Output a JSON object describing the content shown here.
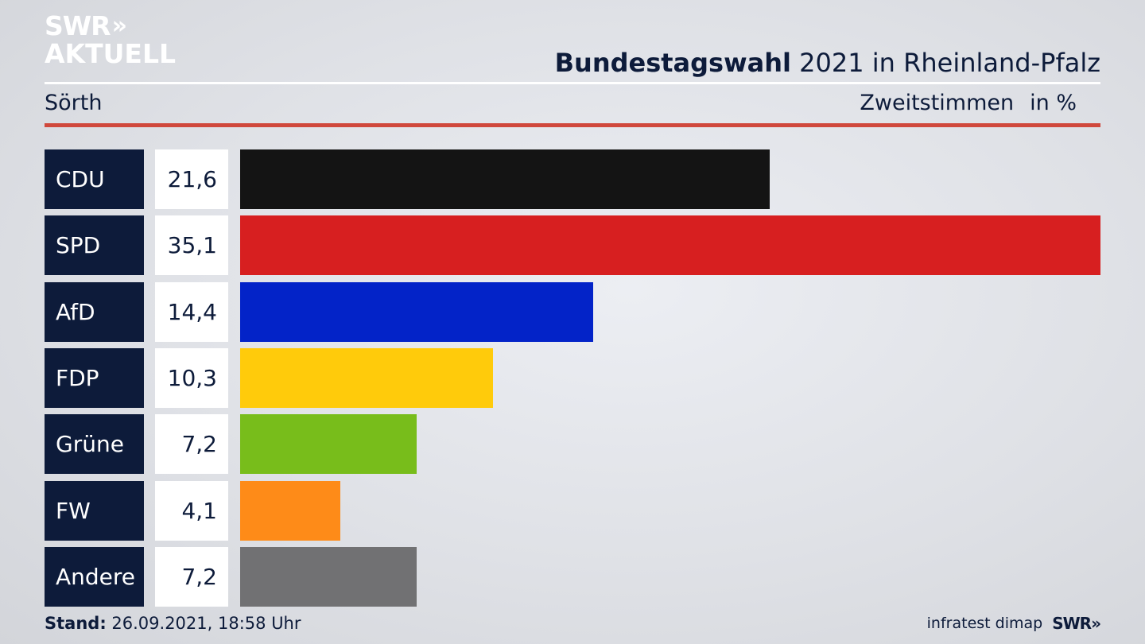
{
  "logo": {
    "line1": "SWR",
    "chevrons": "»",
    "line2": "AKTUELL"
  },
  "header": {
    "title_bold": "Bundestagswahl",
    "title_rest": "2021 in Rheinland-Pfalz",
    "location": "Sörth",
    "metric": "Zweitstimmen",
    "unit": "in %"
  },
  "chart_data": {
    "type": "bar",
    "orientation": "horizontal",
    "title": "Bundestagswahl 2021 in Rheinland-Pfalz",
    "subtitle": "Sörth",
    "metric_label": "Zweitstimmen in %",
    "categories": [
      "CDU",
      "SPD",
      "AfD",
      "FDP",
      "Grüne",
      "FW",
      "Andere"
    ],
    "values": [
      21.6,
      35.1,
      14.4,
      10.3,
      7.2,
      4.1,
      7.2
    ],
    "value_labels": [
      "21,6",
      "35,1",
      "14,4",
      "10,3",
      "7,2",
      "4,1",
      "7,2"
    ],
    "colors": [
      "#141414",
      "#d71f20",
      "#0323c8",
      "#ffcb0b",
      "#78bd1b",
      "#fe8b18",
      "#717173"
    ],
    "xlim": [
      0,
      35.1
    ]
  },
  "footer": {
    "stand_label": "Stand:",
    "stand_value": "26.09.2021, 18:58 Uhr",
    "source": "infratest dimap",
    "brand": "SWR»"
  }
}
